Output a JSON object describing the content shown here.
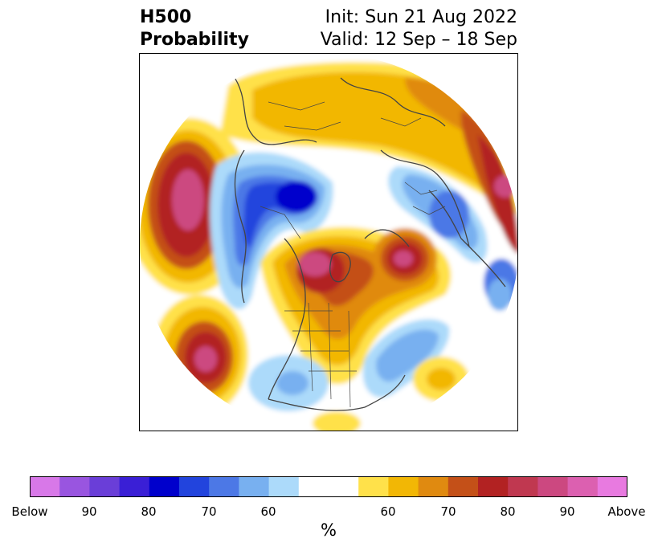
{
  "title": {
    "left_line1": "H500",
    "left_line2": "Probability",
    "right_line1": "Init: Sun 21 Aug 2022",
    "right_line2": "Valid: 12 Sep – 18 Sep"
  },
  "map": {
    "projection": "north-polar-stereographic",
    "palette": {
      "below": [
        "#d878e8",
        "#9955e0",
        "#6a3ed8",
        "#3a1fd6",
        "#0000cc",
        "#2244dd",
        "#4c78e6",
        "#78b0f0",
        "#acdafa"
      ],
      "neutral": "#ffffff",
      "above": [
        "#ffe14a",
        "#f2b705",
        "#e08a10",
        "#c45018",
        "#b22222",
        "#c03850",
        "#cc4880",
        "#dc60b0",
        "#e87ae0"
      ]
    }
  },
  "colorbar": {
    "tick_labels": [
      "Below",
      "90",
      "80",
      "70",
      "60",
      "60",
      "70",
      "80",
      "90",
      "Above"
    ],
    "unit": "%",
    "colors": [
      "#d878e8",
      "#9955e0",
      "#6a3ed8",
      "#3a1fd6",
      "#0000cc",
      "#2244dd",
      "#4c78e6",
      "#78b0f0",
      "#acdafa",
      "#ffffff",
      "#ffe14a",
      "#f2b705",
      "#e08a10",
      "#c45018",
      "#b22222",
      "#c03850",
      "#cc4880",
      "#dc60b0",
      "#e87ae0"
    ]
  }
}
